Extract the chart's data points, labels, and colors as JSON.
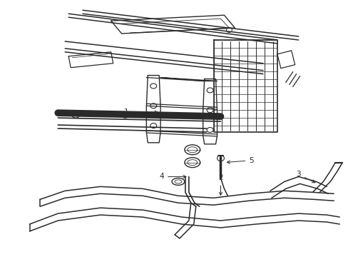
{
  "bg_color": "#ffffff",
  "line_color": "#2a2a2a",
  "fig_width": 4.89,
  "fig_height": 3.6,
  "dpi": 100,
  "label_fontsize": 7.5
}
